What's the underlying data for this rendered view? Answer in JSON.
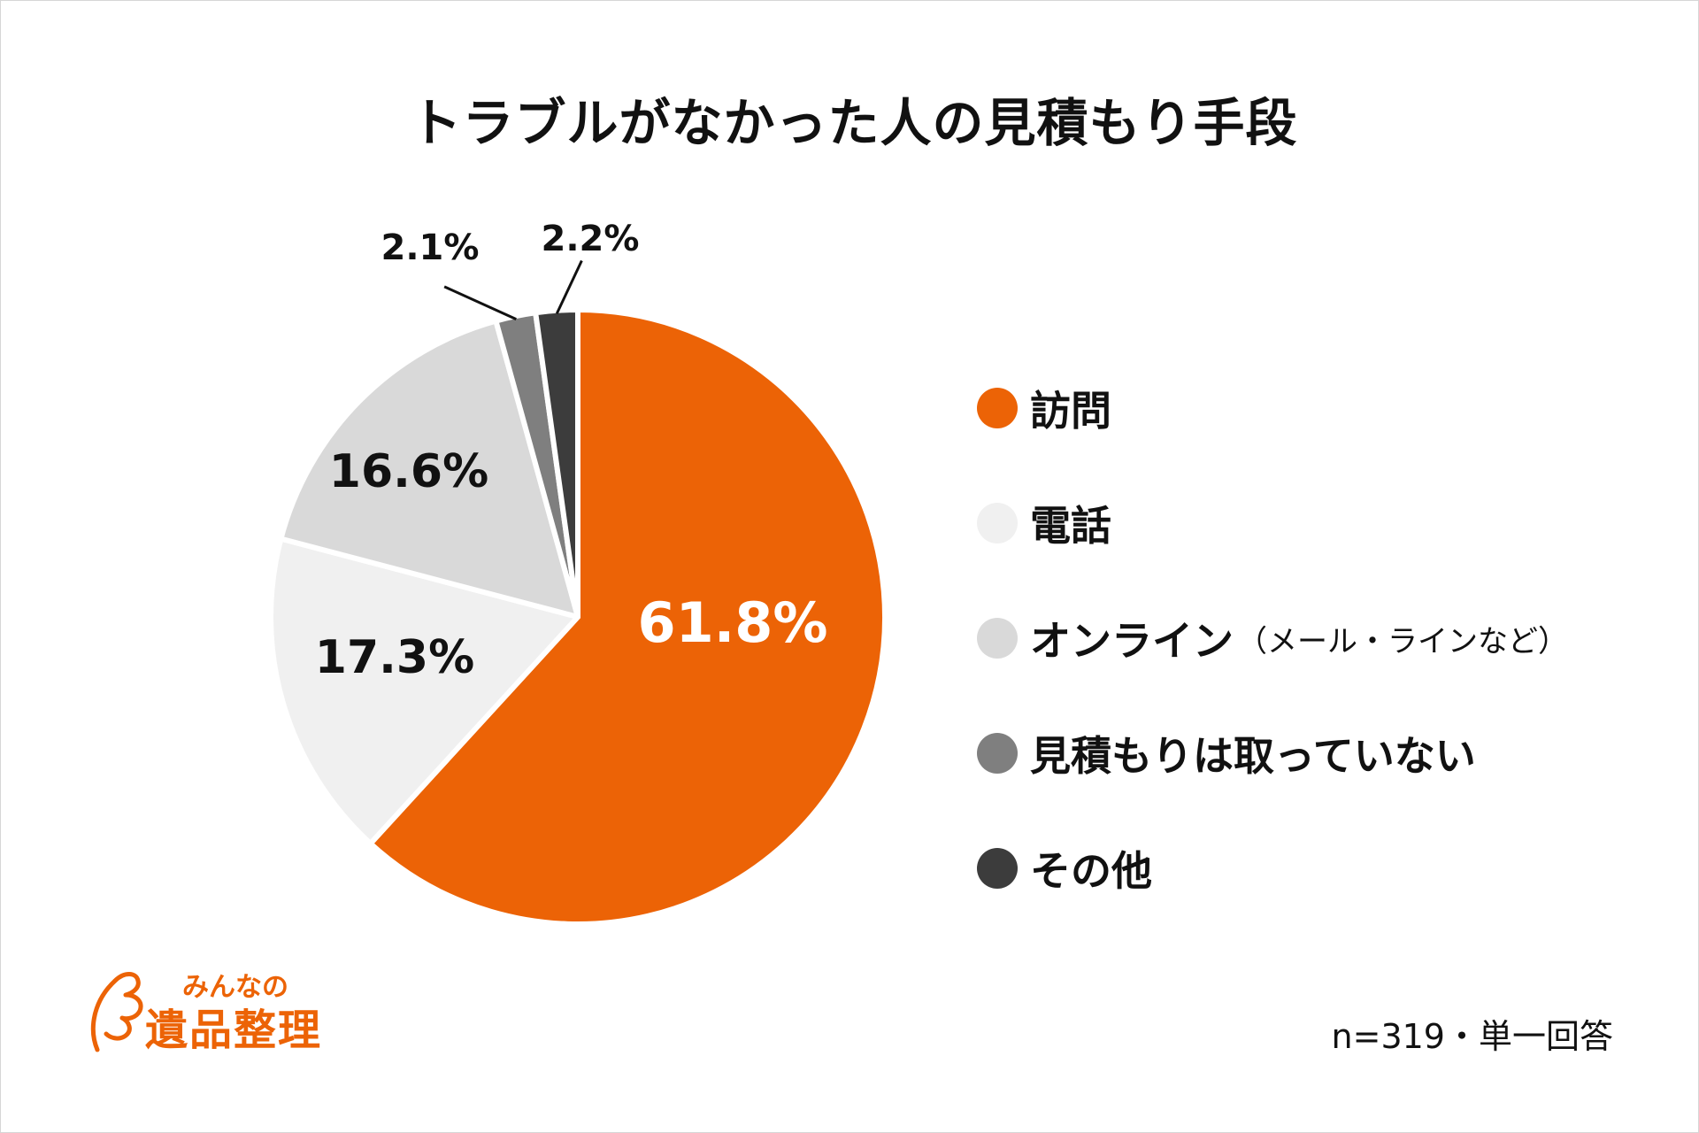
{
  "chart_data": {
    "type": "pie",
    "title": "トラブルがなかった人の見積もり手段",
    "categories": [
      "訪問",
      "電話",
      "オンライン",
      "見積もりは取っていない",
      "その他"
    ],
    "values": [
      61.8,
      17.3,
      16.6,
      2.1,
      2.2
    ],
    "value_labels": [
      "61.8%",
      "17.3%",
      "16.6%",
      "2.1%",
      "2.2%"
    ],
    "colors": [
      "#ec6306",
      "#f0f0f0",
      "#d9d9d9",
      "#7f7f7f",
      "#3c3c3c"
    ],
    "label_colors": [
      "#ffffff",
      "#111111",
      "#111111",
      "#111111",
      "#111111"
    ],
    "legend": [
      {
        "label": "訪問",
        "note": "",
        "color": "#ec6306"
      },
      {
        "label": "電話",
        "note": "",
        "color": "#f0f0f0"
      },
      {
        "label": "オンライン",
        "note": "（メール・ラインなど）",
        "color": "#d9d9d9"
      },
      {
        "label": "見積もりは取っていない",
        "note": "",
        "color": "#7f7f7f"
      },
      {
        "label": "その他",
        "note": "",
        "color": "#3c3c3c"
      }
    ],
    "legend_position": "right",
    "start_angle_deg": 0,
    "direction": "clockwise"
  },
  "logo": {
    "top_text": "みんなの",
    "main_text": "遺品整理"
  },
  "footnote": "n=319・単一回答"
}
